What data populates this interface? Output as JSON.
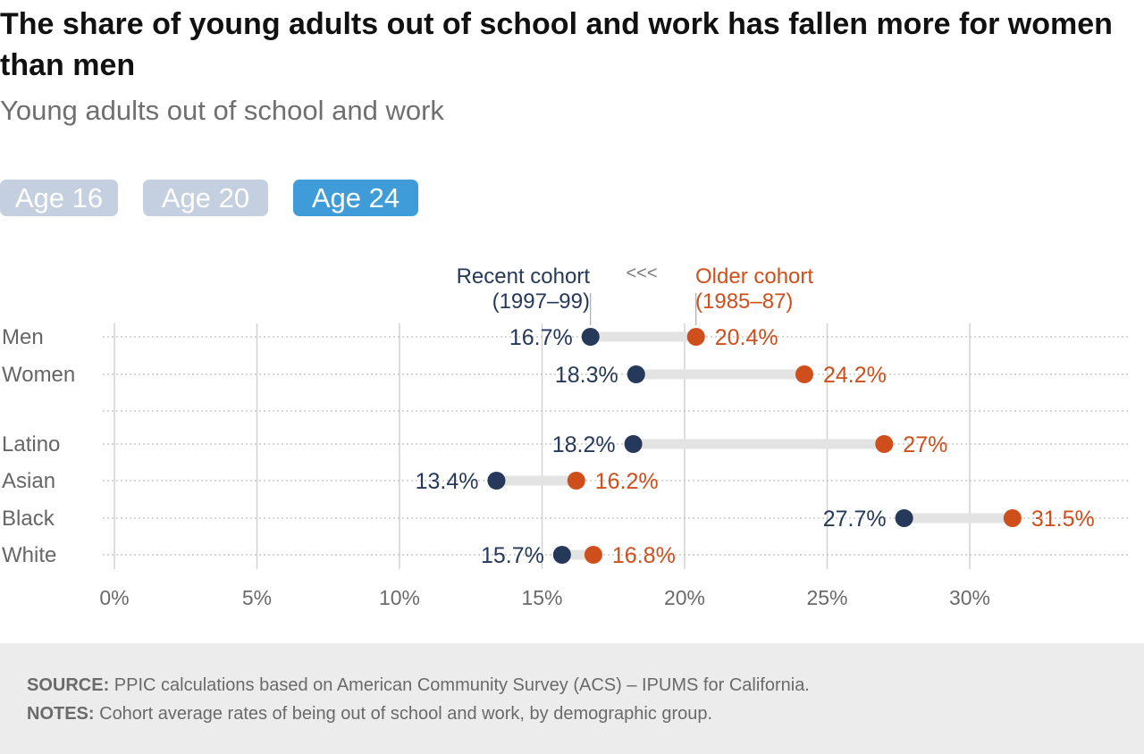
{
  "title": "The share of young adults out of school and work has fallen more for women than men",
  "subtitle": "Young adults out of school and work",
  "tabs": [
    "Age 16",
    "Age 20",
    "Age 24"
  ],
  "active_tab": 2,
  "colors": {
    "recent": "#26395a",
    "older": "#cf4f1c",
    "tab_active": "#3f9cd9",
    "tab_inactive": "#c4cfdf"
  },
  "chart_data": {
    "type": "dumbbell",
    "legend": {
      "recent": [
        "Recent cohort",
        "(1997–99)"
      ],
      "older": [
        "Older cohort",
        "(1985–87)"
      ],
      "arrow": "<<<"
    },
    "xlim": [
      0,
      35
    ],
    "xticks": [
      0,
      5,
      10,
      15,
      20,
      25,
      30
    ],
    "xtick_labels": [
      "0%",
      "5%",
      "10%",
      "15%",
      "20%",
      "25%",
      "30%"
    ],
    "rows": [
      {
        "category": "Men",
        "recent": 16.7,
        "older": 20.4,
        "recent_label": "16.7%",
        "older_label": "20.4%"
      },
      {
        "category": "Women",
        "recent": 18.3,
        "older": 24.2,
        "recent_label": "18.3%",
        "older_label": "24.2%"
      },
      {
        "category": "",
        "recent": null,
        "older": null,
        "recent_label": "",
        "older_label": ""
      },
      {
        "category": "Latino",
        "recent": 18.2,
        "older": 27.0,
        "recent_label": "18.2%",
        "older_label": "27%"
      },
      {
        "category": "Asian",
        "recent": 13.4,
        "older": 16.2,
        "recent_label": "13.4%",
        "older_label": "16.2%"
      },
      {
        "category": "Black",
        "recent": 27.7,
        "older": 31.5,
        "recent_label": "27.7%",
        "older_label": "31.5%"
      },
      {
        "category": "White",
        "recent": 15.7,
        "older": 16.8,
        "recent_label": "15.7%",
        "older_label": "16.8%"
      }
    ]
  },
  "footer": {
    "source_label": "SOURCE:",
    "source_text": " PPIC calculations based on American Community Survey (ACS) – IPUMS for California.",
    "notes_label": "NOTES:",
    "notes_text": " Cohort average rates of being out of school and work, by demographic group."
  }
}
